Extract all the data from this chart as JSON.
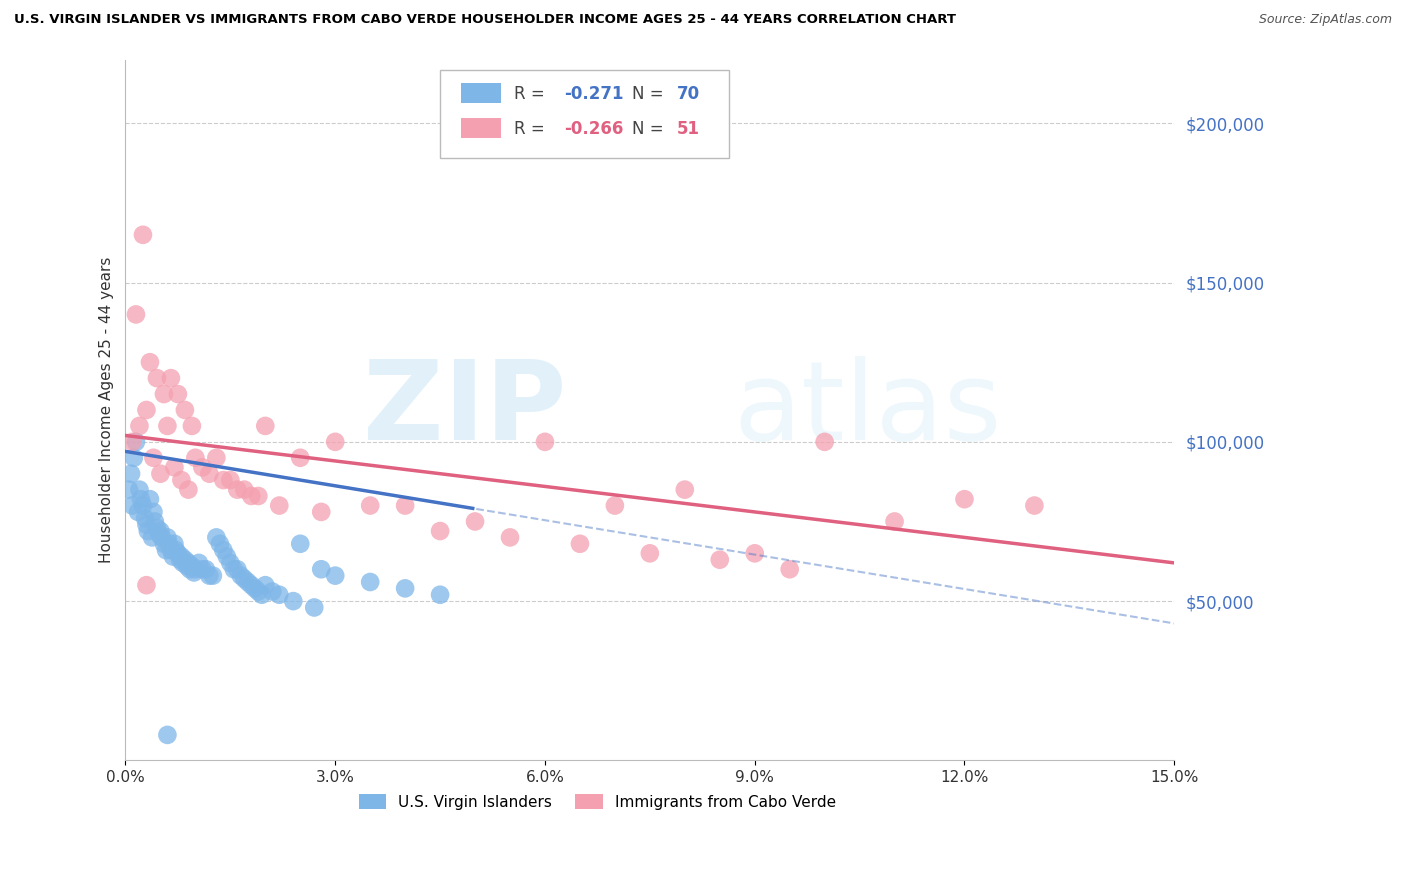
{
  "title": "U.S. VIRGIN ISLANDER VS IMMIGRANTS FROM CABO VERDE HOUSEHOLDER INCOME AGES 25 - 44 YEARS CORRELATION CHART",
  "source": "Source: ZipAtlas.com",
  "ylabel": "Householder Income Ages 25 - 44 years",
  "xmin": 0.0,
  "xmax": 15.0,
  "ymin": 0,
  "ymax": 220000,
  "yticks": [
    50000,
    100000,
    150000,
    200000
  ],
  "ytick_labels": [
    "$50,000",
    "$100,000",
    "$150,000",
    "$200,000"
  ],
  "right_axis_color": "#4472C4",
  "legend_r1": "-0.271",
  "legend_n1": "70",
  "legend_r2": "-0.266",
  "legend_n2": "51",
  "color_blue": "#7EB6E8",
  "color_pink": "#F4A0B0",
  "color_blue_line": "#4472C4",
  "color_pink_line": "#E06080",
  "watermark_zip": "ZIP",
  "watermark_atlas": "atlas",
  "blue_scatter_x": [
    0.05,
    0.08,
    0.1,
    0.12,
    0.15,
    0.18,
    0.2,
    0.22,
    0.25,
    0.28,
    0.3,
    0.32,
    0.35,
    0.38,
    0.4,
    0.42,
    0.45,
    0.48,
    0.5,
    0.52,
    0.55,
    0.58,
    0.6,
    0.62,
    0.65,
    0.68,
    0.7,
    0.72,
    0.75,
    0.78,
    0.8,
    0.82,
    0.85,
    0.88,
    0.9,
    0.92,
    0.95,
    0.98,
    1.0,
    1.05,
    1.1,
    1.15,
    1.2,
    1.25,
    1.3,
    1.35,
    1.4,
    1.45,
    1.5,
    1.55,
    1.6,
    1.65,
    1.7,
    1.75,
    1.8,
    1.85,
    1.9,
    1.95,
    2.0,
    2.1,
    2.2,
    2.4,
    2.5,
    2.7,
    2.8,
    3.0,
    3.5,
    4.0,
    4.5,
    0.6
  ],
  "blue_scatter_y": [
    85000,
    90000,
    80000,
    95000,
    100000,
    78000,
    85000,
    82000,
    80000,
    76000,
    74000,
    72000,
    82000,
    70000,
    78000,
    75000,
    73000,
    71000,
    72000,
    70000,
    68000,
    66000,
    70000,
    68000,
    66000,
    64000,
    68000,
    66000,
    65000,
    63000,
    64000,
    62000,
    63000,
    61000,
    62000,
    60000,
    61000,
    59000,
    60000,
    62000,
    60000,
    60000,
    58000,
    58000,
    70000,
    68000,
    66000,
    64000,
    62000,
    60000,
    60000,
    58000,
    57000,
    56000,
    55000,
    54000,
    53000,
    52000,
    55000,
    53000,
    52000,
    50000,
    68000,
    48000,
    60000,
    58000,
    56000,
    54000,
    52000,
    8000
  ],
  "pink_scatter_x": [
    0.1,
    0.15,
    0.2,
    0.25,
    0.3,
    0.35,
    0.4,
    0.45,
    0.5,
    0.55,
    0.6,
    0.65,
    0.7,
    0.75,
    0.8,
    0.85,
    0.9,
    0.95,
    1.0,
    1.1,
    1.2,
    1.3,
    1.4,
    1.5,
    1.6,
    1.7,
    1.8,
    1.9,
    2.0,
    2.2,
    2.5,
    2.8,
    3.0,
    3.5,
    4.0,
    4.5,
    5.0,
    6.0,
    7.0,
    8.0,
    9.0,
    10.0,
    11.0,
    12.0,
    13.0,
    5.5,
    6.5,
    7.5,
    8.5,
    9.5,
    0.3
  ],
  "pink_scatter_y": [
    100000,
    140000,
    105000,
    165000,
    110000,
    125000,
    95000,
    120000,
    90000,
    115000,
    105000,
    120000,
    92000,
    115000,
    88000,
    110000,
    85000,
    105000,
    95000,
    92000,
    90000,
    95000,
    88000,
    88000,
    85000,
    85000,
    83000,
    83000,
    105000,
    80000,
    95000,
    78000,
    100000,
    80000,
    80000,
    72000,
    75000,
    100000,
    80000,
    85000,
    65000,
    100000,
    75000,
    82000,
    80000,
    70000,
    68000,
    65000,
    63000,
    60000,
    55000
  ]
}
